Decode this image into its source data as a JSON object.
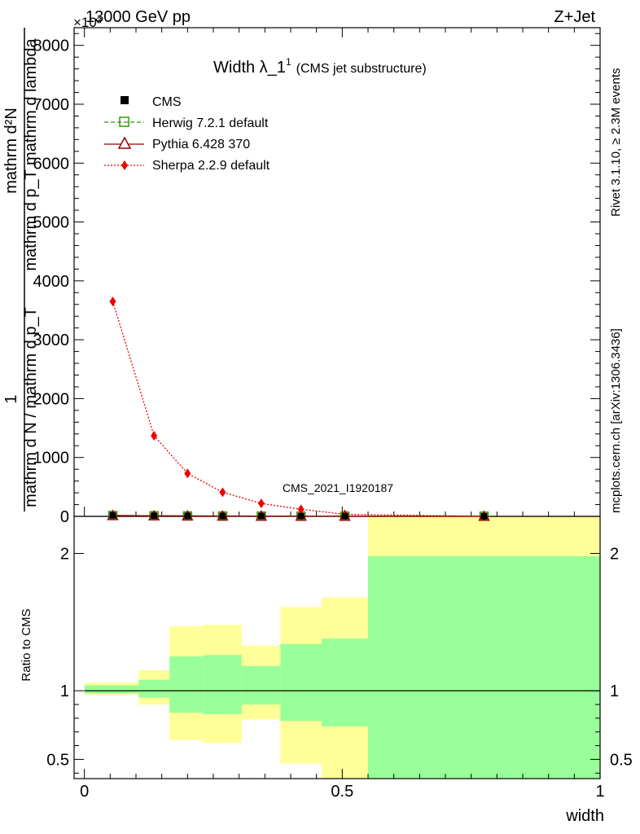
{
  "header": {
    "left": "13000 GeV pp",
    "right": "Z+Jet",
    "exponent": "×10³"
  },
  "side_labels": {
    "rivet": "Rivet 3.1.10, ≥ 2.3M events",
    "mcplots": "mcplots.cern.ch [arXiv:1306.3436]"
  },
  "watermark": "CMS_2021_I1920187",
  "chart_data": {
    "type": "line",
    "title": "Width λ_1",
    "title_superscript": "1",
    "subtitle": "(CMS jet substructure)",
    "xlabel": "width",
    "ylabel_lines": [
      "1",
      "mathrm d N / mathrm d p_T",
      "mathrm d²N",
      "mathrm d p_T mathrm d lambda"
    ],
    "xlim": [
      -0.02,
      1.0
    ],
    "main": {
      "ylim": [
        0,
        8300
      ],
      "y_ticks": [
        {
          "v": 0,
          "label": "0"
        },
        {
          "v": 1000,
          "label": "1000"
        },
        {
          "v": 2000,
          "label": "2000"
        },
        {
          "v": 3000,
          "label": "3000"
        },
        {
          "v": 4000,
          "label": "4000"
        },
        {
          "v": 5000,
          "label": "5000"
        },
        {
          "v": 6000,
          "label": "6000"
        },
        {
          "v": 7000,
          "label": "7000"
        },
        {
          "v": 8000,
          "label": "8000"
        }
      ]
    },
    "legend": [
      "CMS",
      "Herwig 7.2.1 default",
      "Pythia 6.428 370",
      "Sherpa 2.2.9 default"
    ],
    "legend_position": "top-left",
    "cms_x": [
      0.055,
      0.135,
      0.2,
      0.268,
      0.343,
      0.42,
      0.505,
      0.775
    ],
    "cms_y": [
      15,
      10,
      8,
      6,
      5,
      4,
      3,
      2
    ],
    "series": [
      {
        "name": "Herwig 7.2.1 default",
        "x": [
          0.055,
          0.135,
          0.2,
          0.268,
          0.343,
          0.42,
          0.505,
          0.775
        ],
        "y": [
          15,
          10,
          8,
          6,
          5,
          4,
          3,
          2
        ]
      },
      {
        "name": "Pythia 6.428 370",
        "x": [
          0.055,
          0.135,
          0.2,
          0.268,
          0.343,
          0.42,
          0.505,
          0.775
        ],
        "y": [
          15,
          10,
          8,
          6,
          5,
          4,
          3,
          2
        ]
      },
      {
        "name": "Sherpa 2.2.9 default",
        "x": [
          0.055,
          0.135,
          0.2,
          0.268,
          0.343,
          0.42,
          0.505,
          0.775
        ],
        "y": [
          3650,
          1370,
          730,
          410,
          220,
          120,
          35,
          2
        ]
      }
    ],
    "ratio": {
      "ylabel": "Ratio to CMS",
      "ylim": [
        0.36,
        2.27
      ],
      "y_ticks": [
        {
          "v": 0.5,
          "label": "0.5"
        },
        {
          "v": 1,
          "label": "1"
        },
        {
          "v": 2,
          "label": "2"
        }
      ],
      "x_ticks": [
        {
          "v": 0,
          "label": "0"
        },
        {
          "v": 0.5,
          "label": "0.5"
        },
        {
          "v": 1,
          "label": "1"
        }
      ],
      "bands": [
        {
          "x0": 0.0,
          "x1": 0.105,
          "inner": [
            0.98,
            1.04
          ],
          "outer": [
            0.97,
            1.06
          ]
        },
        {
          "x0": 0.105,
          "x1": 0.165,
          "inner": [
            0.95,
            1.08
          ],
          "outer": [
            0.9,
            1.15
          ]
        },
        {
          "x0": 0.165,
          "x1": 0.23,
          "inner": [
            0.84,
            1.25
          ],
          "outer": [
            0.64,
            1.47
          ]
        },
        {
          "x0": 0.23,
          "x1": 0.305,
          "inner": [
            0.83,
            1.26
          ],
          "outer": [
            0.62,
            1.48
          ]
        },
        {
          "x0": 0.305,
          "x1": 0.38,
          "inner": [
            0.9,
            1.18
          ],
          "outer": [
            0.79,
            1.33
          ]
        },
        {
          "x0": 0.38,
          "x1": 0.46,
          "inner": [
            0.78,
            1.34
          ],
          "outer": [
            0.47,
            1.61
          ]
        },
        {
          "x0": 0.46,
          "x1": 0.55,
          "inner": [
            0.74,
            1.38
          ],
          "outer": [
            0.36,
            1.68
          ]
        },
        {
          "x0": 0.55,
          "x1": 1.0,
          "inner": [
            0.36,
            1.98
          ],
          "outer": [
            0.36,
            2.27
          ]
        }
      ]
    }
  },
  "colors": {
    "cms": "#000000",
    "herwig": "#339900",
    "pythia": "#990000",
    "sherpa": "#ee0000",
    "band_inner": "#99ff99",
    "band_outer": "#ffff99",
    "watermark": "#999999"
  }
}
